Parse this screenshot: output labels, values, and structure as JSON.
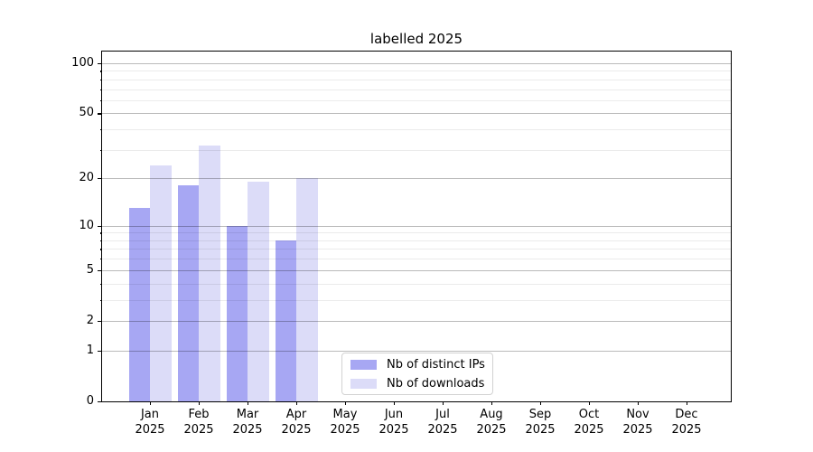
{
  "title": "labelled 2025",
  "chart_data": {
    "type": "bar",
    "title": "labelled 2025",
    "categories": [
      "Jan 2025",
      "Feb 2025",
      "Mar 2025",
      "Apr 2025",
      "May 2025",
      "Jun 2025",
      "Jul 2025",
      "Aug 2025",
      "Sep 2025",
      "Oct 2025",
      "Nov 2025",
      "Dec 2025"
    ],
    "series": [
      {
        "name": "Nb of distinct IPs",
        "color": "#a7a7f3",
        "values": [
          13,
          18,
          10,
          8,
          0,
          0,
          0,
          0,
          0,
          0,
          0,
          0
        ]
      },
      {
        "name": "Nb of downloads",
        "color": "#dcdcf8",
        "values": [
          24,
          32,
          19,
          20,
          0,
          0,
          0,
          0,
          0,
          0,
          0,
          0
        ]
      }
    ],
    "xlabel": "",
    "ylabel": "",
    "yscale": "log1p",
    "ylim": [
      0,
      117.5
    ],
    "yticks": [
      0,
      1,
      2,
      5,
      10,
      20,
      50,
      100
    ],
    "yticks_minor": [
      3,
      4,
      6,
      7,
      8,
      9,
      30,
      40,
      60,
      70,
      80,
      90
    ],
    "grid": true,
    "legend_position": "lower center"
  },
  "legend": {
    "items": [
      {
        "label": "Nb of distinct IPs",
        "color": "#a7a7f3"
      },
      {
        "label": "Nb of downloads",
        "color": "#dcdcf8"
      }
    ]
  },
  "colors": {
    "bar_distinct_ips": "#a7a7f3",
    "bar_downloads": "#dcdcf8",
    "grid_major": "rgba(0,0,0,0.27)",
    "grid_minor": "rgba(0,0,0,0.08)",
    "axis": "#000000",
    "background": "#ffffff"
  }
}
